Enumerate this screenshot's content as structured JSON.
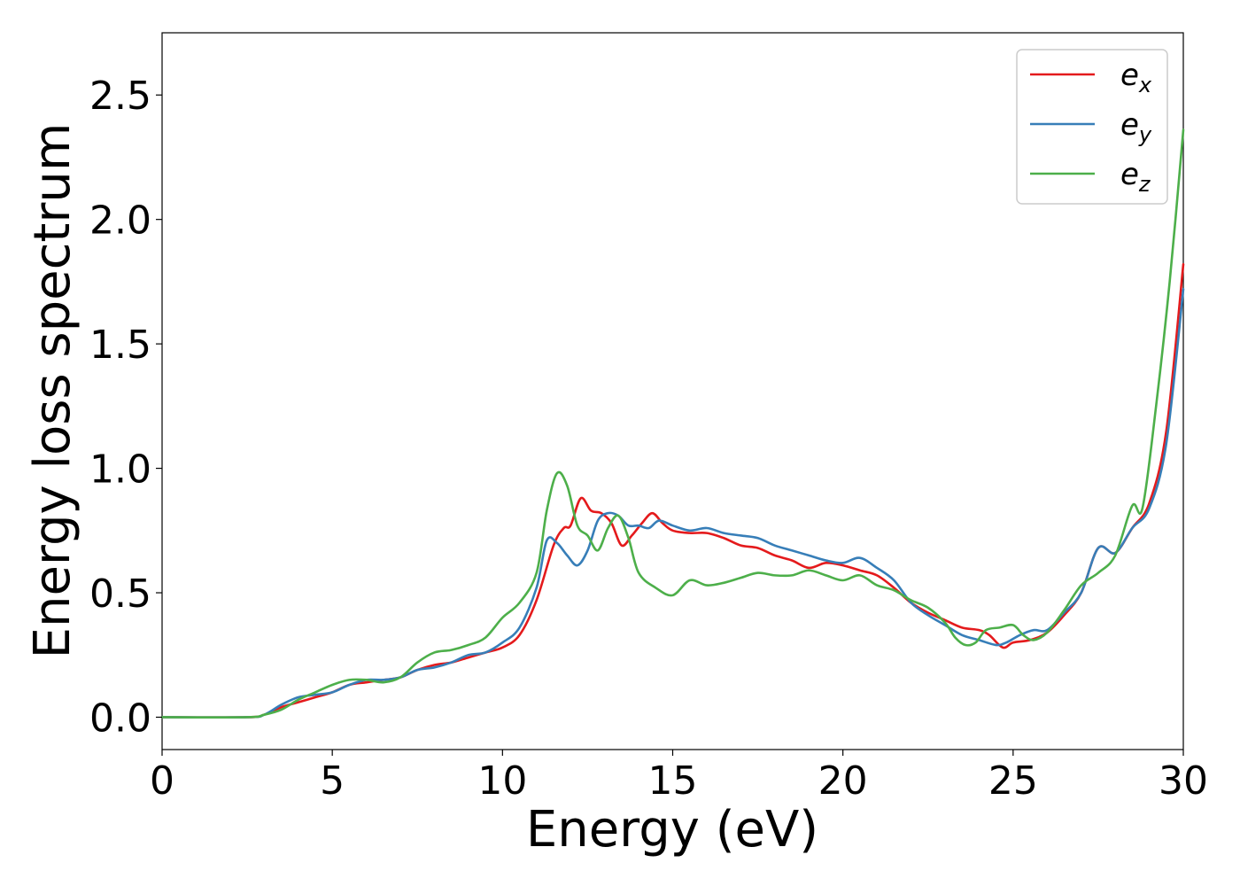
{
  "chart_data": {
    "type": "line",
    "xlabel": "Energy (eV)",
    "ylabel": "Energy loss spectrum",
    "xlim": [
      0,
      30
    ],
    "ylim": [
      -0.13,
      2.75
    ],
    "xticks": [
      "0",
      "5",
      "10",
      "15",
      "20",
      "25",
      "30"
    ],
    "yticks": [
      "0.0",
      "0.5",
      "1.0",
      "1.5",
      "2.0",
      "2.5"
    ],
    "grid": false,
    "legend_position": "top-right",
    "series": [
      {
        "name": "e_x",
        "label_main": "e",
        "label_sub": "x",
        "color": "#e41a1c",
        "x": [
          0,
          2.5,
          3.0,
          3.5,
          4.0,
          4.5,
          5.0,
          5.5,
          6.0,
          6.5,
          7.0,
          7.5,
          8.0,
          8.5,
          9.0,
          9.5,
          10.0,
          10.5,
          11.0,
          11.5,
          11.8,
          12.0,
          12.3,
          12.6,
          12.9,
          13.2,
          13.5,
          13.8,
          14.1,
          14.4,
          14.7,
          15.0,
          15.5,
          16.0,
          16.5,
          17.0,
          17.5,
          18.0,
          18.5,
          19.0,
          19.5,
          20.0,
          20.5,
          21.0,
          21.5,
          22.0,
          22.5,
          23.0,
          23.5,
          24.0,
          24.3,
          24.7,
          25.0,
          25.5,
          26.0,
          26.5,
          27.0,
          27.5,
          28.0,
          28.5,
          29.0,
          29.5,
          30.0
        ],
        "y": [
          0.0,
          0.0,
          0.01,
          0.04,
          0.06,
          0.08,
          0.1,
          0.13,
          0.14,
          0.15,
          0.16,
          0.19,
          0.21,
          0.22,
          0.24,
          0.26,
          0.28,
          0.33,
          0.47,
          0.69,
          0.76,
          0.77,
          0.88,
          0.83,
          0.82,
          0.78,
          0.69,
          0.73,
          0.78,
          0.82,
          0.78,
          0.75,
          0.74,
          0.74,
          0.72,
          0.69,
          0.68,
          0.65,
          0.63,
          0.6,
          0.62,
          0.61,
          0.59,
          0.57,
          0.52,
          0.46,
          0.42,
          0.39,
          0.36,
          0.35,
          0.33,
          0.28,
          0.3,
          0.31,
          0.34,
          0.41,
          0.5,
          0.68,
          0.66,
          0.76,
          0.86,
          1.15,
          1.82
        ]
      },
      {
        "name": "e_y",
        "label_main": "e",
        "label_sub": "y",
        "color": "#377eb8",
        "x": [
          0,
          2.5,
          3.0,
          3.5,
          4.0,
          4.5,
          5.0,
          5.5,
          6.0,
          6.5,
          7.0,
          7.5,
          8.0,
          8.5,
          9.0,
          9.5,
          10.0,
          10.5,
          11.0,
          11.3,
          11.6,
          11.9,
          12.2,
          12.5,
          12.8,
          13.1,
          13.4,
          13.7,
          14.0,
          14.3,
          14.6,
          15.0,
          15.5,
          16.0,
          16.5,
          17.0,
          17.5,
          18.0,
          18.5,
          19.0,
          19.5,
          20.0,
          20.5,
          21.0,
          21.5,
          22.0,
          22.5,
          23.0,
          23.5,
          24.0,
          24.5,
          24.8,
          25.2,
          25.6,
          26.0,
          26.5,
          27.0,
          27.5,
          28.0,
          28.5,
          29.0,
          29.5,
          30.0
        ],
        "y": [
          0.0,
          0.0,
          0.01,
          0.05,
          0.08,
          0.09,
          0.1,
          0.13,
          0.15,
          0.15,
          0.16,
          0.19,
          0.2,
          0.22,
          0.25,
          0.26,
          0.3,
          0.36,
          0.52,
          0.71,
          0.7,
          0.65,
          0.61,
          0.67,
          0.79,
          0.82,
          0.81,
          0.77,
          0.77,
          0.76,
          0.79,
          0.77,
          0.75,
          0.76,
          0.74,
          0.73,
          0.72,
          0.69,
          0.67,
          0.65,
          0.63,
          0.62,
          0.64,
          0.6,
          0.55,
          0.46,
          0.41,
          0.37,
          0.33,
          0.31,
          0.29,
          0.3,
          0.33,
          0.35,
          0.35,
          0.42,
          0.5,
          0.68,
          0.66,
          0.76,
          0.84,
          1.1,
          1.72
        ]
      },
      {
        "name": "e_z",
        "label_main": "e",
        "label_sub": "z",
        "color": "#4daf4a",
        "x": [
          0,
          2.5,
          3.0,
          3.5,
          4.0,
          4.5,
          5.0,
          5.5,
          6.0,
          6.5,
          7.0,
          7.5,
          8.0,
          8.5,
          9.0,
          9.5,
          10.0,
          10.5,
          11.0,
          11.3,
          11.6,
          11.9,
          12.2,
          12.5,
          12.8,
          13.1,
          13.4,
          13.7,
          14.0,
          14.5,
          15.0,
          15.5,
          16.0,
          16.5,
          17.0,
          17.5,
          18.0,
          18.5,
          19.0,
          19.5,
          20.0,
          20.5,
          21.0,
          21.5,
          22.0,
          22.5,
          23.0,
          23.3,
          23.6,
          23.9,
          24.2,
          24.6,
          25.0,
          25.3,
          25.6,
          26.0,
          26.5,
          27.0,
          27.5,
          28.0,
          28.5,
          28.8,
          29.2,
          29.6,
          30.0
        ],
        "y": [
          0.0,
          0.0,
          0.01,
          0.03,
          0.07,
          0.1,
          0.13,
          0.15,
          0.15,
          0.14,
          0.16,
          0.22,
          0.26,
          0.27,
          0.29,
          0.32,
          0.4,
          0.46,
          0.58,
          0.83,
          0.98,
          0.93,
          0.77,
          0.73,
          0.67,
          0.76,
          0.81,
          0.72,
          0.58,
          0.52,
          0.49,
          0.55,
          0.53,
          0.54,
          0.56,
          0.58,
          0.57,
          0.57,
          0.59,
          0.57,
          0.55,
          0.57,
          0.53,
          0.51,
          0.47,
          0.44,
          0.38,
          0.32,
          0.29,
          0.3,
          0.35,
          0.36,
          0.37,
          0.33,
          0.31,
          0.34,
          0.43,
          0.53,
          0.58,
          0.65,
          0.85,
          0.84,
          1.25,
          1.75,
          2.36
        ]
      }
    ]
  }
}
